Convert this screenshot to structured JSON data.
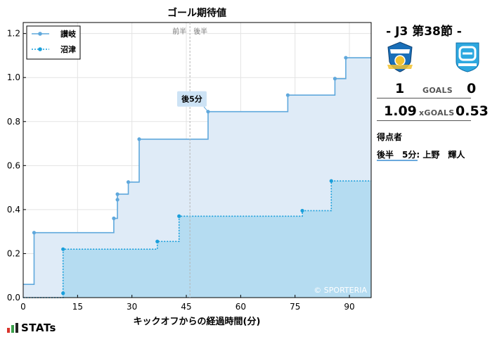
{
  "chart_data": {
    "type": "line",
    "title": "ゴール期待値",
    "xlabel": "キックオフからの経過時間(分)",
    "ylabel": "",
    "xlim": [
      0,
      96
    ],
    "ylim": [
      0,
      1.25
    ],
    "x_ticks": [
      0,
      15,
      30,
      45,
      60,
      75,
      90
    ],
    "y_ticks": [
      0.0,
      0.2,
      0.4,
      0.6,
      0.8,
      1.0,
      1.2
    ],
    "halftime_labels": [
      "前半",
      "後半"
    ],
    "halftime_x": 46,
    "series": [
      {
        "name": "讃岐",
        "color": "#5fa8dc",
        "style": "solid",
        "points": [
          [
            0,
            0.06
          ],
          [
            3,
            0.295
          ],
          [
            25,
            0.36
          ],
          [
            26,
            0.445
          ],
          [
            26,
            0.47
          ],
          [
            29,
            0.525
          ],
          [
            32,
            0.72
          ],
          [
            51,
            0.845
          ],
          [
            73,
            0.92
          ],
          [
            86,
            0.995
          ],
          [
            89,
            1.09
          ],
          [
            96,
            1.09
          ]
        ]
      },
      {
        "name": "沼津",
        "color": "#1a9fdb",
        "style": "dotted",
        "points": [
          [
            0,
            0.0
          ],
          [
            11,
            0.02
          ],
          [
            11,
            0.22
          ],
          [
            37,
            0.255
          ],
          [
            43,
            0.37
          ],
          [
            77,
            0.395
          ],
          [
            85,
            0.53
          ],
          [
            96,
            0.53
          ]
        ]
      }
    ],
    "annotations": [
      {
        "text": "後5分",
        "x": 51,
        "y": 0.845,
        "series": "讃岐"
      }
    ],
    "legend": "top-left",
    "grid": true
  },
  "watermark": "© SPORTERIA",
  "match": {
    "title": "-  J3 第38節  -",
    "home_goals": "1",
    "goals_label": "GOALS",
    "away_goals": "0",
    "home_xg": "1.09",
    "xgoals_label": "xGOALS",
    "away_xg": "0.53"
  },
  "scorers": {
    "title": "得点者",
    "entries": [
      "後半　5分: 上野　輝人"
    ]
  },
  "brand": {
    "logo_text": "STATs"
  },
  "colors": {
    "home_area": "#dfebf7",
    "away_area": "#b5dcf1",
    "home_line": "#5fa8dc",
    "away_line": "#1a9fdb",
    "annotation_bg": "#cde3f5"
  }
}
